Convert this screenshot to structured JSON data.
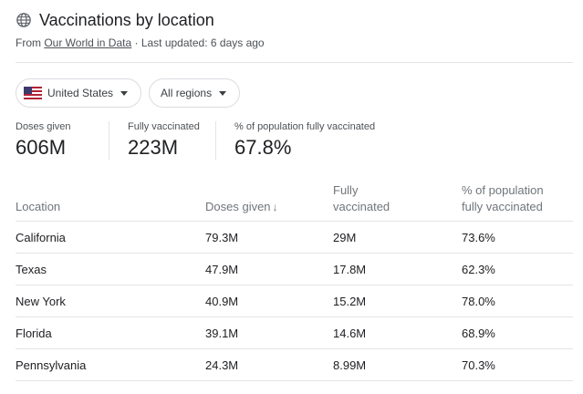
{
  "header": {
    "title": "Vaccinations by location",
    "source_prefix": "From ",
    "source_link": "Our World in Data",
    "source_suffix": " · Last updated: 6 days ago"
  },
  "filters": {
    "country": "United States",
    "region": "All regions"
  },
  "stats": [
    {
      "label": "Doses given",
      "value": "606M"
    },
    {
      "label": "Fully vaccinated",
      "value": "223M"
    },
    {
      "label": "% of population fully vaccinated",
      "value": "67.8%"
    }
  ],
  "table": {
    "headers": {
      "location": "Location",
      "doses": "Doses given",
      "doses_sort": "↓",
      "fully_line1": "Fully",
      "fully_line2": "vaccinated",
      "pct_line1": "% of population",
      "pct_line2": "fully vaccinated"
    },
    "rows": [
      {
        "location": "California",
        "doses": "79.3M",
        "fully": "29M",
        "pct": "73.6%"
      },
      {
        "location": "Texas",
        "doses": "47.9M",
        "fully": "17.8M",
        "pct": "62.3%"
      },
      {
        "location": "New York",
        "doses": "40.9M",
        "fully": "15.2M",
        "pct": "78.0%"
      },
      {
        "location": "Florida",
        "doses": "39.1M",
        "fully": "14.6M",
        "pct": "68.9%"
      },
      {
        "location": "Pennsylvania",
        "doses": "24.3M",
        "fully": "8.99M",
        "pct": "70.3%"
      }
    ]
  },
  "icons": {
    "title": "globe-icon",
    "country_flag": "us-flag-icon",
    "dropdown": "caret-down-icon"
  }
}
